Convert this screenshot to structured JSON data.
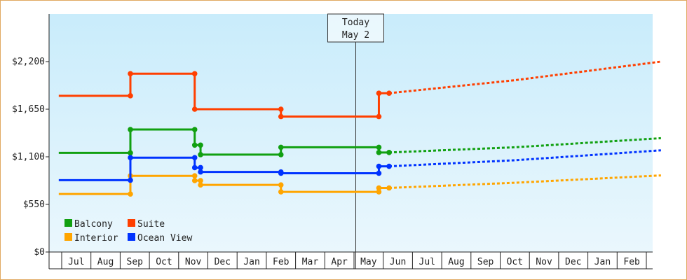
{
  "chart_data": {
    "type": "line",
    "title": "",
    "xlabel": "",
    "ylabel": "",
    "ylim": [
      0,
      2750
    ],
    "yticks": [
      0,
      550,
      1100,
      1650,
      2200
    ],
    "ytick_labels": [
      "$0",
      "$550",
      "$1,100",
      "$1,650",
      "$2,200"
    ],
    "month_labels": [
      "Jul",
      "Aug",
      "Sep",
      "Oct",
      "Nov",
      "Dec",
      "Jan",
      "Feb",
      "Mar",
      "Apr",
      "May",
      "Jun",
      "Jul",
      "Aug",
      "Sep",
      "Oct",
      "Nov",
      "Dec",
      "Jan",
      "Feb"
    ],
    "today": {
      "line1": "Today",
      "line2": "May 2",
      "month_index": 10.05
    },
    "grid": false,
    "background": [
      "#c9ecfb",
      "#eaf7fd"
    ],
    "legend": {
      "placement": "bottom-left"
    },
    "series": [
      {
        "name": "Balcony",
        "color": "#11a011",
        "history": [
          [
            -0.6,
            1145
          ],
          [
            1.85,
            1145
          ],
          [
            1.85,
            1415
          ],
          [
            4.05,
            1415
          ],
          [
            4.05,
            1235
          ],
          [
            4.25,
            1235
          ],
          [
            4.25,
            1125
          ],
          [
            7.0,
            1125
          ],
          [
            7.0,
            1210
          ],
          [
            10.35,
            1210
          ],
          [
            10.35,
            1150
          ],
          [
            10.7,
            1150
          ]
        ],
        "forecast": [
          [
            10.7,
            1150
          ],
          [
            15.0,
            1210
          ],
          [
            20.0,
            1315
          ]
        ]
      },
      {
        "name": "Suite",
        "color": "#ff3f00",
        "history": [
          [
            -0.6,
            1805
          ],
          [
            1.85,
            1805
          ],
          [
            1.85,
            2060
          ],
          [
            4.05,
            2060
          ],
          [
            4.05,
            1650
          ],
          [
            7.0,
            1650
          ],
          [
            7.0,
            1565
          ],
          [
            10.35,
            1565
          ],
          [
            10.35,
            1835
          ],
          [
            10.7,
            1835
          ]
        ],
        "forecast": [
          [
            10.7,
            1835
          ],
          [
            15.0,
            1985
          ],
          [
            20.0,
            2200
          ]
        ]
      },
      {
        "name": "Interior",
        "color": "#ffa500",
        "history": [
          [
            -0.6,
            670
          ],
          [
            1.85,
            670
          ],
          [
            1.85,
            880
          ],
          [
            4.05,
            880
          ],
          [
            4.05,
            825
          ],
          [
            4.25,
            825
          ],
          [
            4.25,
            775
          ],
          [
            7.0,
            775
          ],
          [
            7.0,
            695
          ],
          [
            10.35,
            695
          ],
          [
            10.35,
            740
          ],
          [
            10.7,
            740
          ]
        ],
        "forecast": [
          [
            10.7,
            740
          ],
          [
            15.0,
            800
          ],
          [
            20.0,
            885
          ]
        ]
      },
      {
        "name": "Ocean View",
        "color": "#0033ff",
        "history": [
          [
            -0.6,
            830
          ],
          [
            1.85,
            830
          ],
          [
            1.85,
            1090
          ],
          [
            4.05,
            1090
          ],
          [
            4.05,
            975
          ],
          [
            4.25,
            975
          ],
          [
            4.25,
            925
          ],
          [
            7.0,
            925
          ],
          [
            7.0,
            910
          ],
          [
            10.35,
            910
          ],
          [
            10.35,
            990
          ],
          [
            10.7,
            990
          ]
        ],
        "forecast": [
          [
            10.7,
            990
          ],
          [
            15.0,
            1060
          ],
          [
            20.0,
            1175
          ]
        ]
      }
    ]
  }
}
